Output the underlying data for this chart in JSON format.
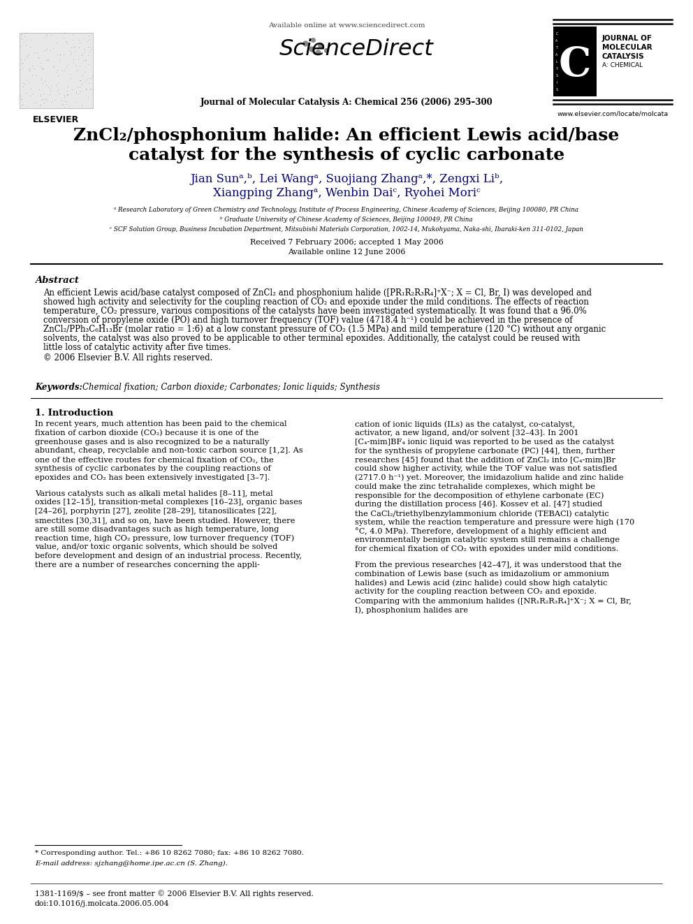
{
  "title_line1": "ZnCl₂/phosphonium halide: An efficient Lewis acid/base",
  "title_line2": "catalyst for the synthesis of cyclic carbonate",
  "authors_line1": "Jian Sunᵃ,ᵇ, Lei Wangᵃ, Suojiang Zhangᵃ,*, Zengxi Liᵇ,",
  "authors_line2": "Xiangping Zhangᵃ, Wenbin Daiᶜ, Ryohei Moriᶜ",
  "affil_a": "ᵃ Research Laboratory of Green Chemistry and Technology, Institute of Process Engineering, Chinese Academy of Sciences, Beijing 100080, PR China",
  "affil_b": "ᵇ Graduate University of Chinese Academy of Sciences, Beijing 100049, PR China",
  "affil_c": "ᶜ SCF Solution Group, Business Incubation Department, Mitsubishi Materials Corporation, 1002-14, Mukohyama, Naka-shi, Ibaraki-ken 311-0102, Japan",
  "received": "Received 7 February 2006; accepted 1 May 2006",
  "available": "Available online 12 June 2006",
  "header_url": "Available online at www.sciencedirect.com",
  "journal_name": "Journal of Molecular Catalysis A: Chemical 256 (2006) 295–300",
  "journal_website": "www.elsevier.com/locate/molcata",
  "journal_label_line1": "JOURNAL OF",
  "journal_label_line2": "MOLECULAR",
  "journal_label_line3": "CATALYSIS",
  "journal_label_line4": "A: CHEMICAL",
  "abstract_title": "Abstract",
  "abstract_text": "An efficient Lewis acid/base catalyst composed of ZnCl₂ and phosphonium halide ([PR₁R₂R₃R₄]⁺X⁻; X = Cl, Br, I) was developed and showed high activity and selectivity for the coupling reaction of CO₂ and epoxide under the mild conditions. The effects of reaction temperature, CO₂ pressure, various compositions of the catalysts have been investigated systematically. It was found that a 96.0% conversion of propylene oxide (PO) and high turnover frequency (TOF) value (4718.4 h⁻¹) could be achieved in the presence of ZnCl₂/PPh₃C₆H₁₃Br (molar ratio = 1:6) at a low constant pressure of CO₂ (1.5 MPa) and mild temperature (120 °C) without any organic solvents, the catalyst was also proved to be applicable to other terminal epoxides. Additionally, the catalyst could be reused with little loss of catalytic activity after five times.",
  "abstract_copyright": "© 2006 Elsevier B.V. All rights reserved.",
  "keywords_label": "Keywords:",
  "keywords_text": "Chemical fixation; Carbon dioxide; Carbonates; Ionic liquids; Synthesis",
  "intro_title": "1. Introduction",
  "intro_para1": "In recent years, much attention has been paid to the chemical fixation of carbon dioxide (CO₂) because it is one of the greenhouse gases and is also recognized to be a naturally abundant, cheap, recyclable and non-toxic carbon source [1,2]. As one of the effective routes for chemical fixation of CO₂, the synthesis of cyclic carbonates by the coupling reactions of epoxides and CO₂ has been extensively investigated [3–7].",
  "intro_para2": "Various catalysts such as alkali metal halides [8–11], metal oxides [12–15], transition-metal complexes [16–23], organic bases [24–26], porphyrin [27], zeolite [28–29], titanosilicates [22], smectites [30,31], and so on, have been studied. However, there are still some disadvantages such as high temperature, long reaction time, high CO₂ pressure, low turnover frequency (TOF) value, and/or toxic organic solvents, which should be solved before development and design of an industrial process. Recently, there are a number of researches concerning the appli-",
  "right_para1": "cation of ionic liquids (ILs) as the catalyst, co-catalyst, activator, a new ligand, and/or solvent [32–43]. In 2001 [C₄-mim]BF₄ ionic liquid was reported to be used as the catalyst for the synthesis of propylene carbonate (PC) [44], then, further researches [45] found that the addition of ZnCl₂ into [C₄-mim]Br could show higher activity, while the TOF value was not satisfied (2717.0 h⁻¹) yet. Moreover, the imidazolium halide and zinc halide could make the zinc tetrahalide complexes, which might be responsible for the decomposition of ethylene carbonate (EC) during the distillation process [46]. Kossev et al. [47] studied the CaCl₂/triethylbenzylammonium chloride (TEBACl) catalytic system, while the reaction temperature and pressure were high (170 °C, 4.0 MPa). Therefore, development of a highly efficient and environmentally benign catalytic system still remains a challenge for chemical fixation of CO₂ with epoxides under mild conditions.",
  "right_para2": "From the previous researches [42–47], it was understood that the combination of Lewis base (such as imidazolium or ammonium halides) and Lewis acid (zinc halide) could show high catalytic activity for the coupling reaction between CO₂ and epoxide. Comparing with the ammonium halides ([NR₁R₂R₃R₄]⁺X⁻; X = Cl, Br, I), phosphonium halides are",
  "footnote_star": "* Corresponding author. Tel.: +86 10 8262 7080; fax: +86 10 8262 7080.",
  "footnote_email": "E-mail address: sjzhang@home.ipe.ac.cn (S. Zhang).",
  "footer_issn": "1381-1169/$ – see front matter © 2006 Elsevier B.V. All rights reserved.",
  "footer_doi": "doi:10.1016/j.molcata.2006.05.004",
  "bg_color": "#ffffff",
  "text_color": "#000000",
  "title_color": "#000000",
  "blue_color": "#000080"
}
